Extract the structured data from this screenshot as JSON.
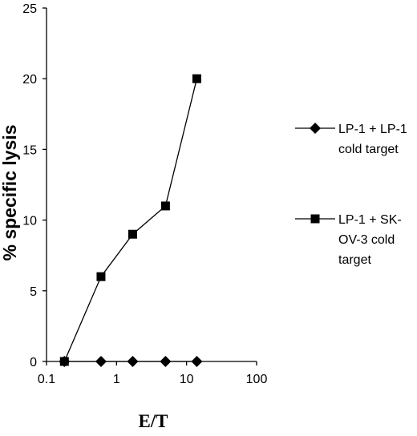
{
  "chart_data": {
    "type": "line",
    "xlabel": "E/T",
    "ylabel": "% specific lysis",
    "x_scale": "log",
    "xlim": [
      0.1,
      100
    ],
    "ylim": [
      0,
      25
    ],
    "x_ticks": [
      "0.1",
      "1",
      "10",
      "100"
    ],
    "y_ticks": [
      "0",
      "5",
      "10",
      "15",
      "20",
      "25"
    ],
    "grid": false,
    "legend_position": "right",
    "series": [
      {
        "name_lines": [
          "LP-1 + LP-1",
          "cold target"
        ],
        "marker": "diamond",
        "x": [
          0.18,
          0.6,
          1.7,
          5,
          14
        ],
        "y": [
          0,
          0,
          0,
          0,
          0
        ]
      },
      {
        "name_lines": [
          "LP-1 + SK-",
          "OV-3 cold",
          "target"
        ],
        "marker": "square",
        "x": [
          0.18,
          0.6,
          1.7,
          5,
          14
        ],
        "y": [
          0,
          6,
          9,
          11,
          20
        ]
      }
    ]
  }
}
